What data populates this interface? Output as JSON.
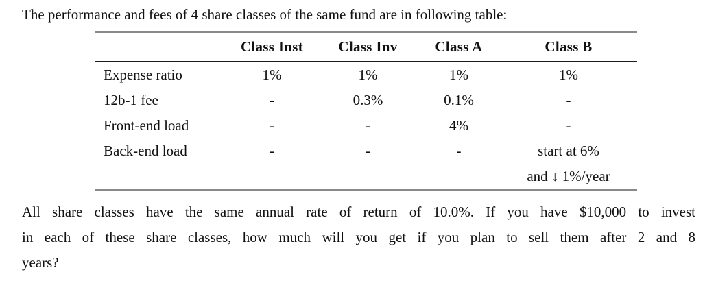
{
  "page": {
    "intro": "The performance and fees of 4 share classes of the same fund are in following table:",
    "question_lines": [
      "All share classes have the same annual rate of return of 10.0%. If you have $10,000 to invest",
      "in each of these share classes, how much will you get if you plan to sell them after 2 and 8",
      "years?"
    ]
  },
  "table": {
    "headers": [
      "",
      "Class Inst",
      "Class Inv",
      "Class A",
      "Class B"
    ],
    "rows": [
      {
        "cells": [
          "Expense ratio",
          "1%",
          "1%",
          "1%",
          "1%"
        ]
      },
      {
        "cells": [
          "12b-1 fee",
          "-",
          "0.3%",
          "0.1%",
          "-"
        ]
      },
      {
        "cells": [
          "Front-end load",
          "-",
          "-",
          "4%",
          "-"
        ]
      },
      {
        "cells": [
          "Back-end load",
          "-",
          "-",
          "-",
          "start at 6%"
        ]
      },
      {
        "cells": [
          "",
          "",
          "",
          "",
          "and ↓ 1%/year"
        ]
      }
    ]
  },
  "colors": {
    "background": "#ffffff",
    "text": "#111111",
    "heavy_rule": "#898989",
    "mid_rule": "#1c1c1c"
  }
}
